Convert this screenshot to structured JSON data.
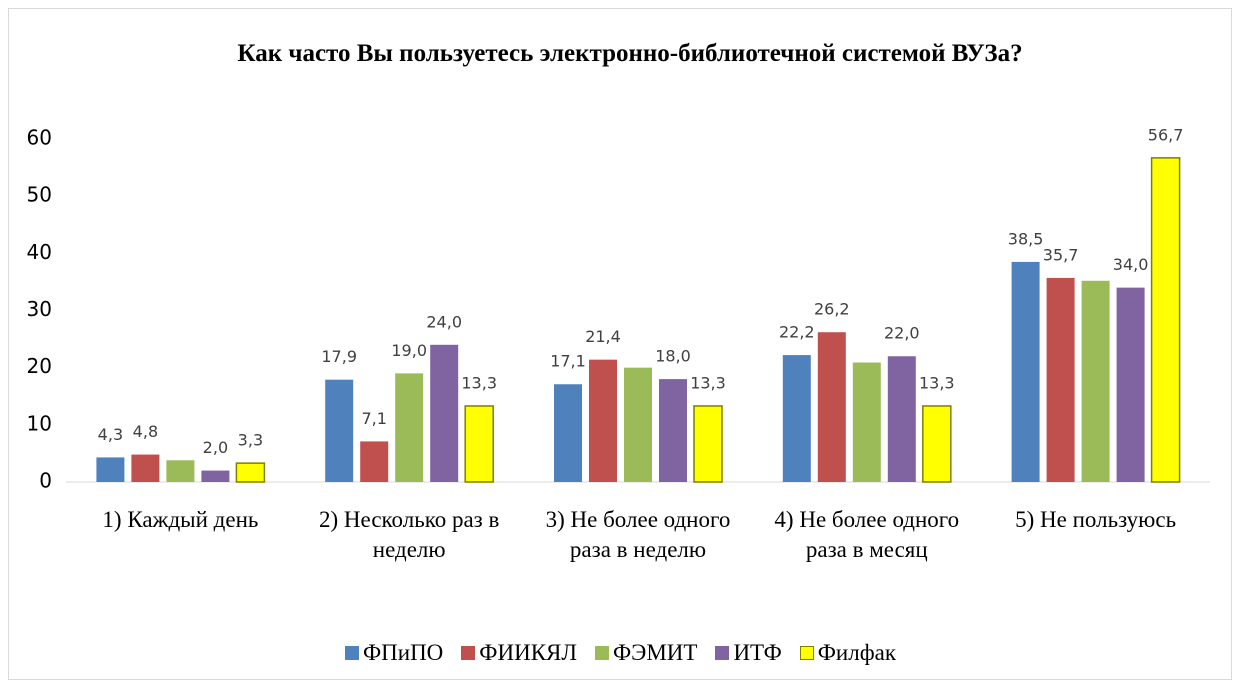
{
  "chart_data": {
    "type": "bar",
    "title": "Как часто Вы пользуетесь электронно-библиотечной системой ВУЗа?",
    "categories": [
      "1) Каждый день",
      "2) Несколько раз в неделю",
      "3) Не более одного раза в неделю",
      "4) Не более одного раза в месяц",
      "5) Не пользуюсь"
    ],
    "series": [
      {
        "name": "ФПиПО",
        "color": "#4f81bd",
        "values": [
          4.3,
          17.9,
          17.1,
          22.2,
          38.5
        ],
        "value_labels": [
          "4,3",
          "17,9",
          "17,1",
          "22,2",
          "38,5"
        ]
      },
      {
        "name": "ФИИКЯЛ",
        "color": "#c0504d",
        "values": [
          4.8,
          7.1,
          21.4,
          26.2,
          35.7
        ],
        "value_labels": [
          "4,8",
          "7,1",
          "21,4",
          "26,2",
          "35,7"
        ]
      },
      {
        "name": "ФЭМИТ",
        "color": "#9bbb59",
        "values": [
          3.8,
          19.0,
          20.0,
          20.9,
          35.2
        ],
        "value_labels": [
          null,
          "19,0",
          null,
          null,
          null
        ]
      },
      {
        "name": "ИТФ",
        "color": "#8064a2",
        "values": [
          2.0,
          24.0,
          18.0,
          22.0,
          34.0
        ],
        "value_labels": [
          "2,0",
          "24,0",
          "18,0",
          "22,0",
          "34,0"
        ]
      },
      {
        "name": "Филфак",
        "color": "#ffff00",
        "values": [
          3.3,
          13.3,
          13.3,
          13.3,
          56.7
        ],
        "value_labels": [
          "3,3",
          "13,3",
          "13,3",
          "13,3",
          "56,7"
        ]
      }
    ],
    "ylim": [
      0,
      60
    ],
    "yticks": [
      0,
      10,
      20,
      30,
      40,
      50,
      60
    ],
    "grid": false,
    "legend": "bottom"
  }
}
